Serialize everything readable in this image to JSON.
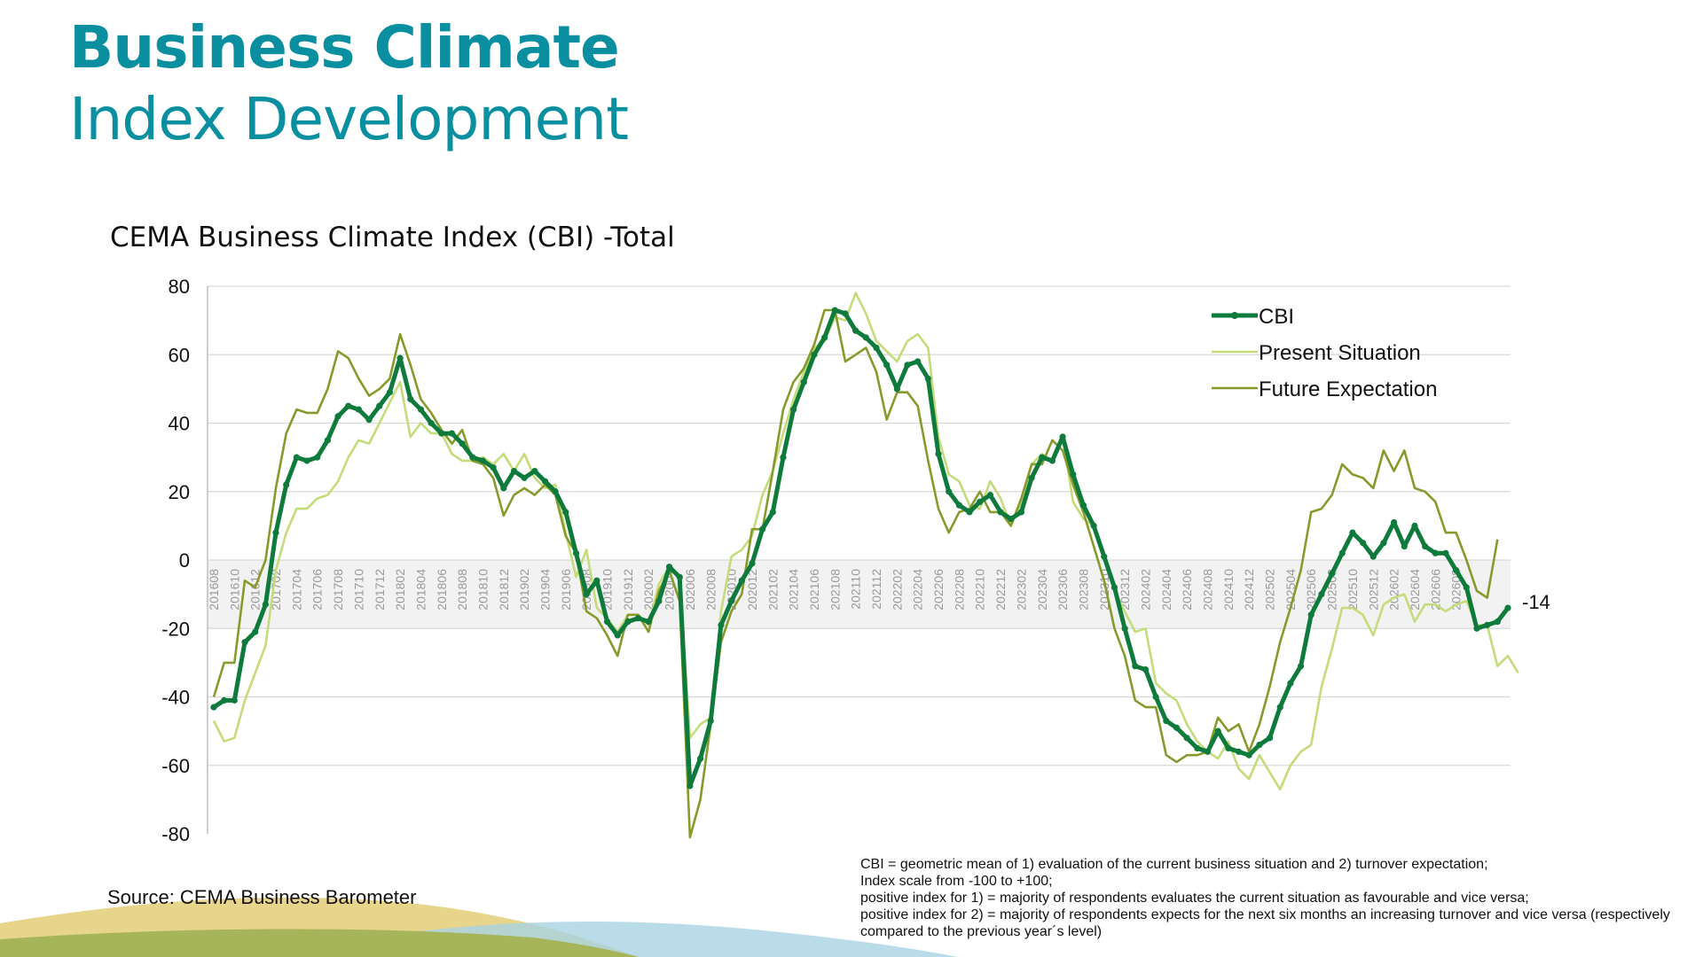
{
  "slide": {
    "title_bold": "Business Climate",
    "title_light": "Index Development"
  },
  "source": "Source: CEMA Business Barometer",
  "footnote": [
    "CBI = geometric mean of 1) evaluation of the current business situation and 2) turnover expectation;",
    "Index scale from -100 to +100;",
    "positive index for 1) = majority of respondents evaluates the current situation as favourable and vice versa;",
    "positive index for 2) = majority of respondents expects for the next six months an increasing turnover and vice versa (respectively compared to the previous year´s level)"
  ],
  "colors": {
    "title": "#0a8fa0",
    "cbi": "#0e7a3c",
    "present": "#c4dc7a",
    "future": "#879a2c",
    "grid": "#d9d9d9",
    "shade": "#f2f2f2",
    "wave_yellow": "#e6d58a",
    "wave_green": "#a6b45a",
    "wave_blue": "#a9d3e2"
  },
  "chart_data": {
    "type": "line",
    "title": "CEMA Business Climate Index (CBI) -Total",
    "ylim": [
      -80,
      80
    ],
    "yticks": [
      80,
      60,
      40,
      20,
      0,
      -20,
      -40,
      -60,
      -80
    ],
    "grid": true,
    "legend_position": "top-right",
    "end_label": "-14",
    "x_tick_labels": [
      "201608",
      "201610",
      "201612",
      "201702",
      "201704",
      "201706",
      "201708",
      "201710",
      "201712",
      "201802",
      "201804",
      "201806",
      "201808",
      "201810",
      "201812",
      "201902",
      "201904",
      "201906",
      "201908",
      "201910",
      "201912",
      "202002",
      "202004",
      "202006",
      "202008",
      "202010",
      "202012",
      "202102",
      "202104",
      "202106",
      "202108",
      "202110",
      "202112",
      "202202",
      "202204",
      "202206",
      "202208",
      "202210",
      "202212",
      "202302",
      "202304",
      "202306",
      "202308",
      "202310",
      "202312",
      "202402",
      "202404",
      "202406",
      "202408",
      "202410",
      "202412",
      "202502",
      "202504",
      "202506",
      "202508",
      "202510",
      "202512",
      "202602",
      "202604",
      "202606",
      "202608"
    ],
    "series": [
      {
        "name": "CBI",
        "markers": true,
        "values": [
          -43,
          -41,
          -41,
          -24,
          -21,
          -13,
          8,
          22,
          30,
          29,
          30,
          35,
          42,
          45,
          44,
          41,
          45,
          49,
          59,
          47,
          44,
          40,
          37,
          37,
          34,
          30,
          29,
          27,
          21,
          26,
          24,
          26,
          23,
          20,
          14,
          2,
          -10,
          -6,
          -18,
          -22,
          -18,
          -17,
          -18,
          -12,
          -2,
          -5,
          -66,
          -58,
          -47,
          -19,
          -12,
          -6,
          -1,
          9,
          14,
          30,
          44,
          52,
          60,
          65,
          73,
          72,
          67,
          65,
          62,
          57,
          50,
          57,
          58,
          53,
          31,
          20,
          16,
          14,
          17,
          19,
          14,
          12,
          14,
          24,
          30,
          29,
          36,
          25,
          16,
          10,
          1,
          -8,
          -20,
          -31,
          -32,
          -40,
          -47,
          -49,
          -52,
          -55,
          -56,
          -50,
          -55,
          -56,
          -57,
          -54,
          -52,
          -43,
          -36,
          -31,
          -16,
          -10,
          -4,
          2,
          8,
          5,
          1,
          5,
          11,
          4,
          10,
          4,
          2,
          2,
          -3,
          -8,
          -20,
          -19,
          -18,
          -14
        ]
      },
      {
        "name": "Present Situation",
        "markers": false,
        "values": [
          -47,
          -53,
          -52,
          -41,
          -33,
          -25,
          -3,
          8,
          15,
          15,
          18,
          19,
          23,
          30,
          35,
          34,
          40,
          46,
          52,
          36,
          40,
          37,
          37,
          31,
          29,
          29,
          30,
          28,
          31,
          26,
          31,
          24,
          21,
          22,
          8,
          -5,
          3,
          -14,
          -17,
          -21,
          -16,
          -16,
          -19,
          -7,
          -2,
          -5,
          -52,
          -48,
          -46,
          -15,
          1,
          3,
          7,
          19,
          26,
          37,
          47,
          55,
          62,
          64,
          71,
          70,
          78,
          72,
          64,
          61,
          58,
          64,
          66,
          62,
          36,
          25,
          23,
          16,
          15,
          23,
          18,
          10,
          17,
          28,
          31,
          29,
          36,
          17,
          12,
          10,
          2,
          -9,
          -15,
          -21,
          -20,
          -36,
          -39,
          -41,
          -48,
          -53,
          -56,
          -58,
          -53,
          -61,
          -64,
          -57,
          -62,
          -67,
          -60,
          -56,
          -54,
          -37,
          -26,
          -14,
          -14,
          -16,
          -22,
          -13,
          -11,
          -10,
          -18,
          -13,
          -13,
          -15,
          -13,
          -12,
          -19,
          -19,
          -31,
          -28,
          -33
        ]
      },
      {
        "name": "Future Expectation",
        "markers": false,
        "values": [
          -40,
          -30,
          -30,
          -6,
          -8,
          0,
          21,
          37,
          44,
          43,
          43,
          50,
          61,
          59,
          53,
          48,
          50,
          53,
          66,
          57,
          47,
          43,
          38,
          34,
          38,
          29,
          28,
          24,
          13,
          19,
          21,
          19,
          22,
          19,
          7,
          2,
          -15,
          -17,
          -22,
          -28,
          -16,
          -16,
          -21,
          -9,
          -3,
          -12,
          -81,
          -70,
          -48,
          -24,
          -15,
          -10,
          9,
          9,
          26,
          44,
          52,
          56,
          63,
          73,
          73,
          58,
          60,
          62,
          55,
          41,
          49,
          49,
          45,
          29,
          15,
          8,
          14,
          15,
          20,
          14,
          14,
          10,
          18,
          28,
          28,
          35,
          32,
          22,
          14,
          4,
          -6,
          -20,
          -28,
          -41,
          -43,
          -43,
          -57,
          -59,
          -57,
          -57,
          -56,
          -46,
          -50,
          -48,
          -56,
          -48,
          -37,
          -24,
          -14,
          -3,
          14,
          15,
          19,
          28,
          25,
          24,
          21,
          32,
          26,
          32,
          21,
          20,
          17,
          8,
          8,
          0,
          -9,
          -11,
          6
        ]
      }
    ]
  }
}
